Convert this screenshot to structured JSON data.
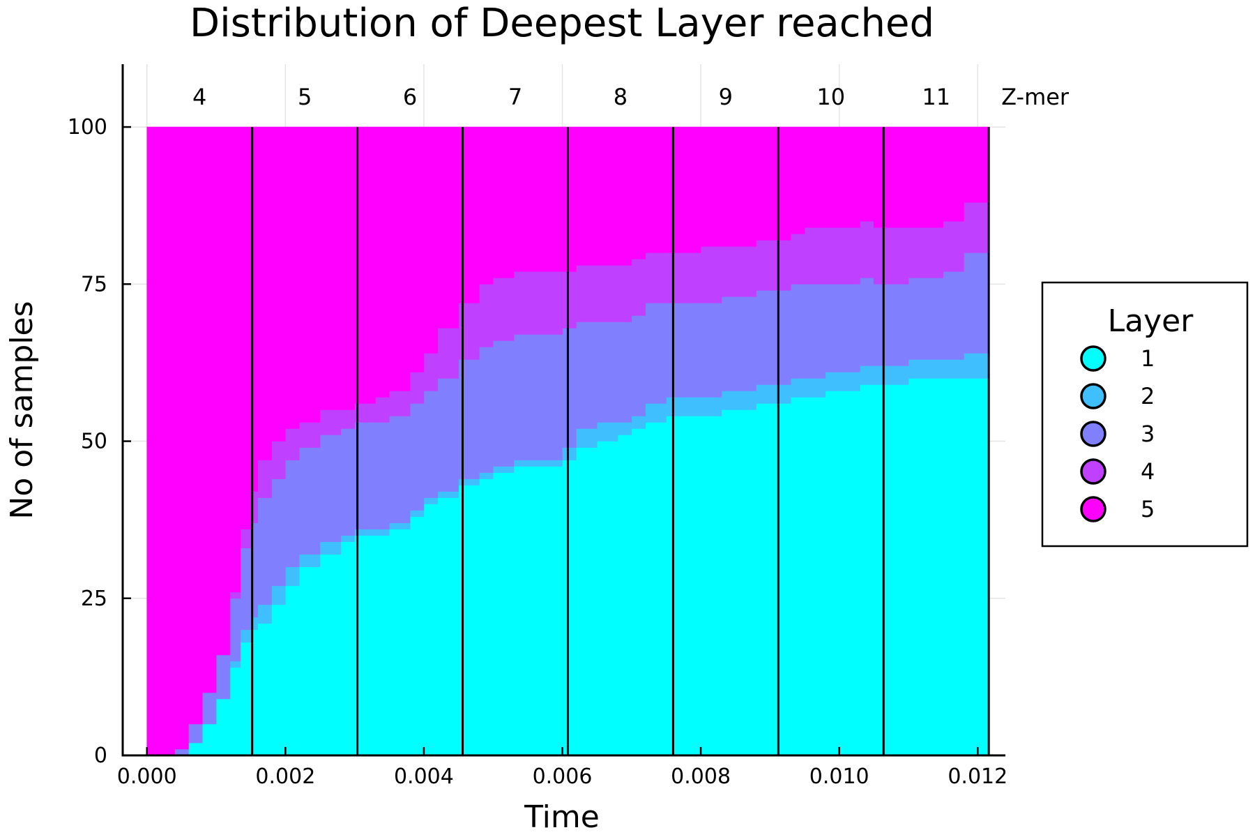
{
  "chart_data": {
    "type": "area",
    "title": "Distribution of Deepest Layer reached",
    "xlabel": "Time",
    "ylabel": "No of samples",
    "xlim": [
      -0.00035,
      0.0124
    ],
    "ylim": [
      0,
      110
    ],
    "xticks": [
      0.0,
      0.002,
      0.004,
      0.006,
      0.008,
      0.01,
      0.012
    ],
    "xtick_labels": [
      "0.000",
      "0.002",
      "0.004",
      "0.006",
      "0.008",
      "0.010",
      "0.012"
    ],
    "yticks": [
      0,
      25,
      50,
      75,
      100
    ],
    "ytick_labels": [
      "0",
      "25",
      "50",
      "75",
      "100"
    ],
    "grid": true,
    "stacked": true,
    "legend": {
      "title": "Layer",
      "position": "right"
    },
    "zmer": {
      "label": "Z-mer",
      "boundaries": [
        0.0,
        0.00152,
        0.00304,
        0.00456,
        0.00608,
        0.0076,
        0.00912,
        0.01064,
        0.01216
      ],
      "labels": [
        "4",
        "5",
        "6",
        "7",
        "8",
        "9",
        "10",
        "11"
      ]
    },
    "x": [
      0.0,
      0.0004,
      0.0006,
      0.0008,
      0.001,
      0.0012,
      0.00135,
      0.0015,
      0.0016,
      0.0018,
      0.002,
      0.0022,
      0.0025,
      0.0028,
      0.003,
      0.0033,
      0.0035,
      0.0038,
      0.004,
      0.0042,
      0.0045,
      0.0048,
      0.005,
      0.0053,
      0.0055,
      0.0058,
      0.006,
      0.0062,
      0.0065,
      0.0068,
      0.007,
      0.0072,
      0.0075,
      0.0078,
      0.008,
      0.0083,
      0.0085,
      0.0088,
      0.009,
      0.0093,
      0.0095,
      0.0098,
      0.01,
      0.0103,
      0.0105,
      0.0108,
      0.011,
      0.0113,
      0.0115,
      0.0118,
      0.01216
    ],
    "series": [
      {
        "name": "1",
        "color": "#00ffff",
        "values": [
          0,
          0,
          2,
          5,
          9,
          14,
          18,
          20,
          21,
          24,
          27,
          30,
          32,
          34,
          35,
          35,
          36,
          38,
          40,
          41,
          43,
          44,
          45,
          46,
          46,
          46,
          47,
          49,
          50,
          51,
          52,
          53,
          54,
          54,
          54,
          55,
          55,
          56,
          56,
          57,
          57,
          58,
          58,
          59,
          59,
          59,
          60,
          60,
          60,
          60,
          60
        ]
      },
      {
        "name": "2",
        "color": "#40bfff",
        "values": [
          0,
          0,
          0,
          0,
          0,
          1,
          2,
          2,
          3,
          3,
          3,
          2,
          2,
          1,
          1,
          1,
          1,
          1,
          1,
          1,
          1,
          1,
          1,
          1,
          1,
          1,
          2,
          3,
          3,
          2,
          2,
          3,
          3,
          3,
          3,
          3,
          3,
          3,
          3,
          3,
          3,
          3,
          3,
          3,
          3,
          3,
          3,
          3,
          3,
          4,
          6
        ]
      },
      {
        "name": "3",
        "color": "#8080ff",
        "values": [
          0,
          1,
          3,
          5,
          7,
          10,
          13,
          15,
          17,
          17,
          17,
          17,
          17,
          17,
          17,
          17,
          17,
          17,
          17,
          18,
          19,
          20,
          20,
          20,
          20,
          20,
          19,
          17,
          16,
          16,
          16,
          16,
          15,
          15,
          15,
          15,
          15,
          15,
          15,
          15,
          15,
          14,
          14,
          14,
          13,
          13,
          13,
          13,
          14,
          16,
          16
        ]
      },
      {
        "name": "4",
        "color": "#bf40ff",
        "values": [
          0,
          0,
          0,
          0,
          0,
          1,
          3,
          5,
          6,
          6,
          5,
          4,
          4,
          3,
          3,
          4,
          4,
          5,
          6,
          8,
          9,
          10,
          10,
          10,
          10,
          10,
          9,
          9,
          9,
          9,
          9,
          8,
          8,
          8,
          9,
          8,
          8,
          8,
          8,
          8,
          9,
          9,
          9,
          9,
          9,
          9,
          8,
          8,
          8,
          8,
          8
        ]
      },
      {
        "name": "5",
        "color": "#ff00ff",
        "values": [
          100,
          99,
          95,
          90,
          84,
          74,
          64,
          58,
          53,
          50,
          48,
          47,
          45,
          45,
          44,
          43,
          42,
          39,
          36,
          32,
          28,
          25,
          24,
          23,
          23,
          23,
          23,
          22,
          22,
          22,
          21,
          20,
          20,
          20,
          19,
          19,
          19,
          18,
          18,
          17,
          16,
          16,
          16,
          15,
          16,
          16,
          16,
          16,
          15,
          12,
          10
        ]
      }
    ]
  }
}
